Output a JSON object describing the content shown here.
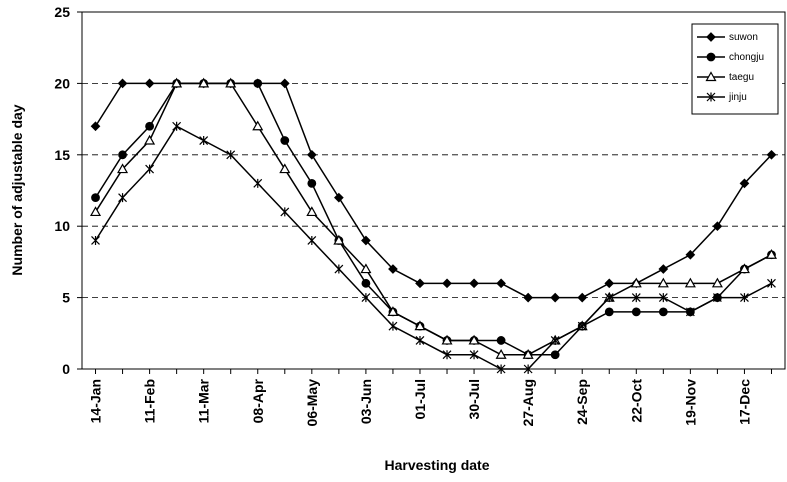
{
  "chart_data": {
    "type": "line",
    "x_label": "Harvesting date",
    "y_label": "Number of adjustable day",
    "categories": [
      "14-Jan",
      null,
      "11-Feb",
      null,
      "11-Mar",
      null,
      "08-Apr",
      null,
      "06-May",
      null,
      "03-Jun",
      null,
      "01-Jul",
      null,
      "30-Jul",
      null,
      "27-Aug",
      null,
      "24-Sep",
      null,
      "22-Oct",
      null,
      "19-Nov",
      null,
      "17-Dec",
      null
    ],
    "ylim": [
      0,
      25
    ],
    "yticks": [
      0,
      5,
      10,
      15,
      20,
      25
    ],
    "grid": true,
    "legend": "upper right",
    "series": [
      {
        "name": "suwon",
        "color": "#000000",
        "marker": "diamond",
        "values": [
          17,
          20,
          20,
          20,
          20,
          20,
          20,
          20,
          15,
          12,
          9,
          7,
          6,
          6,
          6,
          6,
          5,
          5,
          5,
          6,
          6,
          7,
          8,
          10,
          13,
          15
        ]
      },
      {
        "name": "chongju",
        "color": "#000000",
        "marker": "circle",
        "values": [
          12,
          15,
          17,
          20,
          20,
          20,
          20,
          16,
          13,
          9,
          6,
          4,
          3,
          2,
          2,
          2,
          1,
          1,
          3,
          4,
          4,
          4,
          4,
          5,
          7,
          8
        ]
      },
      {
        "name": "taegu",
        "color": "#000000",
        "marker": "triangle",
        "values": [
          11,
          14,
          16,
          20,
          20,
          20,
          17,
          14,
          11,
          9,
          7,
          4,
          3,
          2,
          2,
          1,
          1,
          2,
          3,
          5,
          6,
          6,
          6,
          6,
          7,
          8
        ]
      },
      {
        "name": "jinju",
        "color": "#000000",
        "marker": "star",
        "values": [
          9,
          12,
          14,
          17,
          16,
          15,
          13,
          11,
          9,
          7,
          5,
          3,
          2,
          1,
          1,
          0,
          0,
          2,
          3,
          5,
          5,
          5,
          4,
          5,
          5,
          6
        ]
      }
    ]
  }
}
